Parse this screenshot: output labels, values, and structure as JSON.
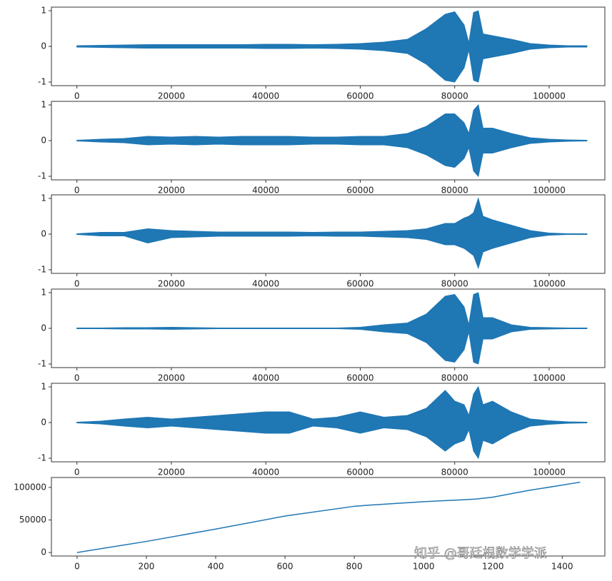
{
  "chart_data": [
    {
      "type": "area",
      "color": "#1f77b4",
      "x": [
        0,
        5000,
        10000,
        15000,
        20000,
        25000,
        30000,
        35000,
        40000,
        45000,
        50000,
        55000,
        60000,
        65000,
        70000,
        74000,
        78000,
        80000,
        82000,
        83000,
        84000,
        85000,
        86000,
        88000,
        92000,
        96000,
        100000,
        104000,
        108000
      ],
      "upper": [
        0.02,
        0.03,
        0.04,
        0.05,
        0.05,
        0.05,
        0.05,
        0.05,
        0.06,
        0.06,
        0.05,
        0.06,
        0.08,
        0.12,
        0.2,
        0.5,
        0.9,
        0.97,
        0.6,
        0.1,
        0.95,
        1.0,
        0.35,
        0.3,
        0.2,
        0.08,
        0.04,
        0.02,
        0.02
      ],
      "lower": [
        -0.02,
        -0.03,
        -0.04,
        -0.05,
        -0.05,
        -0.05,
        -0.05,
        -0.05,
        -0.06,
        -0.06,
        -0.05,
        -0.06,
        -0.08,
        -0.12,
        -0.2,
        -0.5,
        -0.95,
        -1.0,
        -0.6,
        -0.1,
        -0.95,
        -1.0,
        -0.35,
        -0.3,
        -0.2,
        -0.08,
        -0.04,
        -0.02,
        -0.02
      ],
      "xlim": [
        -5400,
        111800
      ],
      "ylim": [
        -1.1,
        1.1
      ],
      "xticks": [
        0,
        20000,
        40000,
        60000,
        80000,
        100000
      ],
      "yticks": [
        -1,
        0,
        1
      ]
    },
    {
      "type": "area",
      "color": "#1f77b4",
      "x": [
        0,
        5000,
        10000,
        15000,
        20000,
        25000,
        30000,
        35000,
        40000,
        45000,
        50000,
        55000,
        60000,
        65000,
        70000,
        74000,
        78000,
        80000,
        82000,
        83000,
        84000,
        85000,
        86000,
        88000,
        92000,
        96000,
        100000,
        104000,
        108000
      ],
      "upper": [
        0.01,
        0.04,
        0.06,
        0.12,
        0.1,
        0.12,
        0.1,
        0.12,
        0.12,
        0.12,
        0.1,
        0.1,
        0.12,
        0.12,
        0.2,
        0.4,
        0.75,
        0.75,
        0.5,
        0.2,
        0.85,
        1.0,
        0.35,
        0.35,
        0.2,
        0.08,
        0.04,
        0.02,
        0.01
      ],
      "lower": [
        -0.01,
        -0.04,
        -0.06,
        -0.12,
        -0.1,
        -0.12,
        -0.1,
        -0.12,
        -0.12,
        -0.12,
        -0.1,
        -0.1,
        -0.12,
        -0.12,
        -0.2,
        -0.4,
        -0.7,
        -0.75,
        -0.5,
        -0.2,
        -0.85,
        -1.0,
        -0.35,
        -0.35,
        -0.2,
        -0.08,
        -0.04,
        -0.02,
        -0.01
      ],
      "xlim": [
        -5400,
        111800
      ],
      "ylim": [
        -1.1,
        1.1
      ],
      "xticks": [
        0,
        20000,
        40000,
        60000,
        80000,
        100000
      ],
      "yticks": [
        -1,
        0,
        1
      ]
    },
    {
      "type": "area",
      "color": "#1f77b4",
      "x": [
        0,
        5000,
        10000,
        15000,
        20000,
        25000,
        30000,
        35000,
        40000,
        45000,
        50000,
        55000,
        60000,
        65000,
        70000,
        74000,
        78000,
        80000,
        82000,
        83000,
        84000,
        85000,
        86000,
        88000,
        92000,
        96000,
        100000,
        104000,
        108000
      ],
      "upper": [
        0.01,
        0.05,
        0.05,
        0.15,
        0.1,
        0.08,
        0.06,
        0.06,
        0.06,
        0.06,
        0.05,
        0.06,
        0.06,
        0.08,
        0.1,
        0.15,
        0.3,
        0.3,
        0.45,
        0.5,
        0.6,
        1.0,
        0.5,
        0.4,
        0.25,
        0.1,
        0.03,
        0.01,
        0.01
      ],
      "lower": [
        -0.01,
        -0.05,
        -0.05,
        -0.25,
        -0.1,
        -0.08,
        -0.06,
        -0.06,
        -0.06,
        -0.06,
        -0.05,
        -0.06,
        -0.06,
        -0.08,
        -0.1,
        -0.15,
        -0.3,
        -0.3,
        -0.4,
        -0.5,
        -0.6,
        -0.95,
        -0.5,
        -0.4,
        -0.25,
        -0.1,
        -0.03,
        -0.01,
        -0.01
      ],
      "xlim": [
        -5400,
        111800
      ],
      "ylim": [
        -1.1,
        1.1
      ],
      "xticks": [
        0,
        20000,
        40000,
        60000,
        80000,
        100000
      ],
      "yticks": [
        -1,
        0,
        1
      ]
    },
    {
      "type": "area",
      "color": "#1f77b4",
      "x": [
        0,
        5000,
        10000,
        15000,
        20000,
        25000,
        30000,
        35000,
        40000,
        45000,
        50000,
        55000,
        60000,
        65000,
        70000,
        74000,
        78000,
        80000,
        82000,
        83000,
        84000,
        85000,
        86000,
        88000,
        92000,
        96000,
        100000,
        104000,
        108000
      ],
      "upper": [
        0.01,
        0.01,
        0.02,
        0.02,
        0.03,
        0.02,
        0.01,
        0.01,
        0.01,
        0.01,
        0.01,
        0.01,
        0.03,
        0.1,
        0.15,
        0.4,
        0.9,
        0.95,
        0.6,
        0.1,
        0.95,
        1.0,
        0.3,
        0.3,
        0.1,
        0.03,
        0.02,
        0.01,
        0.01
      ],
      "lower": [
        -0.01,
        -0.01,
        -0.02,
        -0.02,
        -0.03,
        -0.02,
        -0.01,
        -0.01,
        -0.01,
        -0.01,
        -0.01,
        -0.01,
        -0.03,
        -0.1,
        -0.15,
        -0.4,
        -0.9,
        -0.95,
        -0.6,
        -0.1,
        -0.95,
        -1.0,
        -0.3,
        -0.3,
        -0.1,
        -0.03,
        -0.02,
        -0.01,
        -0.01
      ],
      "xlim": [
        -5400,
        111800
      ],
      "ylim": [
        -1.1,
        1.1
      ],
      "xticks": [
        0,
        20000,
        40000,
        60000,
        80000,
        100000
      ],
      "yticks": [
        -1,
        0,
        1
      ]
    },
    {
      "type": "area",
      "color": "#1f77b4",
      "x": [
        0,
        5000,
        10000,
        15000,
        20000,
        25000,
        30000,
        35000,
        40000,
        45000,
        50000,
        55000,
        60000,
        65000,
        70000,
        74000,
        78000,
        80000,
        82000,
        83000,
        84000,
        85000,
        86000,
        88000,
        92000,
        96000,
        100000,
        104000,
        108000
      ],
      "upper": [
        0.01,
        0.04,
        0.1,
        0.15,
        0.1,
        0.15,
        0.2,
        0.25,
        0.3,
        0.3,
        0.1,
        0.15,
        0.3,
        0.15,
        0.2,
        0.4,
        0.9,
        0.6,
        0.5,
        0.2,
        0.8,
        1.0,
        0.5,
        0.6,
        0.3,
        0.1,
        0.05,
        0.02,
        0.01
      ],
      "lower": [
        -0.01,
        -0.04,
        -0.1,
        -0.15,
        -0.1,
        -0.15,
        -0.2,
        -0.25,
        -0.3,
        -0.3,
        -0.1,
        -0.15,
        -0.3,
        -0.15,
        -0.2,
        -0.4,
        -0.8,
        -0.6,
        -0.5,
        -0.2,
        -0.8,
        -1.0,
        -0.5,
        -0.6,
        -0.3,
        -0.1,
        -0.05,
        -0.02,
        -0.01
      ],
      "xlim": [
        -5400,
        111800
      ],
      "ylim": [
        -1.1,
        1.1
      ],
      "xticks": [
        0,
        20000,
        40000,
        60000,
        80000,
        100000
      ],
      "yticks": [
        -1,
        0,
        1
      ]
    },
    {
      "type": "line",
      "color": "#1f77b4",
      "x": [
        0,
        200,
        400,
        600,
        800,
        850,
        1000,
        1150,
        1200,
        1300,
        1452
      ],
      "values": [
        0,
        17000,
        36000,
        56000,
        71000,
        73000,
        78000,
        82000,
        85000,
        95000,
        108000
      ],
      "xlim": [
        -74,
        1523
      ],
      "ylim": [
        -5400,
        115200
      ],
      "xticks": [
        0,
        200,
        400,
        600,
        800,
        1000,
        1200,
        1400
      ],
      "yticks": [
        0,
        50000,
        100000
      ]
    }
  ],
  "watermark": "知乎 @哥廷根数学学派"
}
